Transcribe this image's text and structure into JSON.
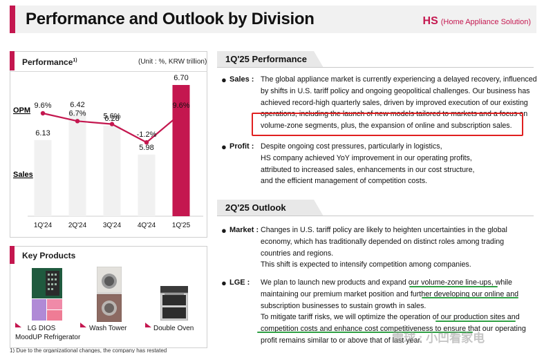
{
  "header": {
    "title": "Performance and Outlook by Division",
    "division_code": "HS",
    "division_name": "(Home Appliance Solution)"
  },
  "performance": {
    "title": "Performance",
    "title_note": "1)",
    "unit": "(Unit : %, KRW trillion)",
    "opm_label": "OPM",
    "sales_label": "Sales"
  },
  "chart_data": {
    "type": "bar",
    "title": "Performance",
    "categories": [
      "1Q'24",
      "2Q'24",
      "3Q'24",
      "4Q'24",
      "1Q'25"
    ],
    "series": [
      {
        "name": "Sales",
        "values": [
          6.13,
          6.42,
          6.28,
          5.98,
          6.7
        ],
        "labels": [
          "6.13",
          "6.42",
          "6.28",
          "5.98",
          "6.70"
        ]
      },
      {
        "name": "OPM",
        "values": [
          9.6,
          6.7,
          5.6,
          -1.2,
          9.6
        ],
        "labels": [
          "9.6%",
          "6.7%",
          "5.6%",
          "-1.2%",
          "9.6%"
        ]
      }
    ],
    "highlight_index": 4,
    "colors": {
      "bar": "#f1f1f1",
      "bar_highlight": "#c4174f",
      "line": "#c4174f"
    }
  },
  "key_products": {
    "title": "Key Products",
    "items": [
      {
        "name": "LG DIOS\nMoodUP Refrigerator",
        "line1": "LG DIOS",
        "line2": "MoodUP Refrigerator"
      },
      {
        "name": "Wash Tower",
        "line1": "Wash Tower"
      },
      {
        "name": "Double Oven",
        "line1": "Double Oven"
      }
    ]
  },
  "footnote": "1) Due to the organizational changes, the company has restated",
  "q1": {
    "tab": "1Q'25 Performance",
    "sales_key": "Sales :",
    "sales_lines": [
      "The global appliance market is currently experiencing a delayed recovery,  influenced",
      "by shifts in U.S. tariff policy and ongoing geopolitical challenges. Our business has",
      "achieved record-high quarterly sales, driven by improved execution of our existing",
      "operations, including the launch of new models tailored to markets and a focus on",
      "volume-zone segments, plus, the expansion of online and subscription sales."
    ],
    "profit_key": "Profit :",
    "profit_lines": [
      "Despite ongoing cost pressures, particularly in logistics,",
      "HS company achieved YoY improvement in our operating profits,",
      "attributed to increased sales, enhancements in our cost structure,",
      "and the efficient management of competition costs."
    ]
  },
  "q2": {
    "tab": "2Q'25 Outlook",
    "market_key": "Market :",
    "market_lines": [
      "Changes in U.S. tariff policy are likely to heighten uncertainties in the global",
      "economy, which has traditionally depended on distinct roles among trading",
      "countries and regions.",
      "This shift is expected to intensify competition among companies."
    ],
    "lge_key": "LGE :",
    "lge_lines": [
      "We plan to launch new products and expand our volume-zone line-ups, while",
      "maintaining our premium market position and further developing our online and",
      "subscription businesses to sustain growth in sales.",
      "To mitigate tariff risks, we will optimize the operation of our production sites and",
      "competition costs and enhance cost competitiveness to ensure that our operating",
      "profit remains similar to or above that of last year."
    ]
  },
  "watermark": "雪球 : 小凹看家电"
}
